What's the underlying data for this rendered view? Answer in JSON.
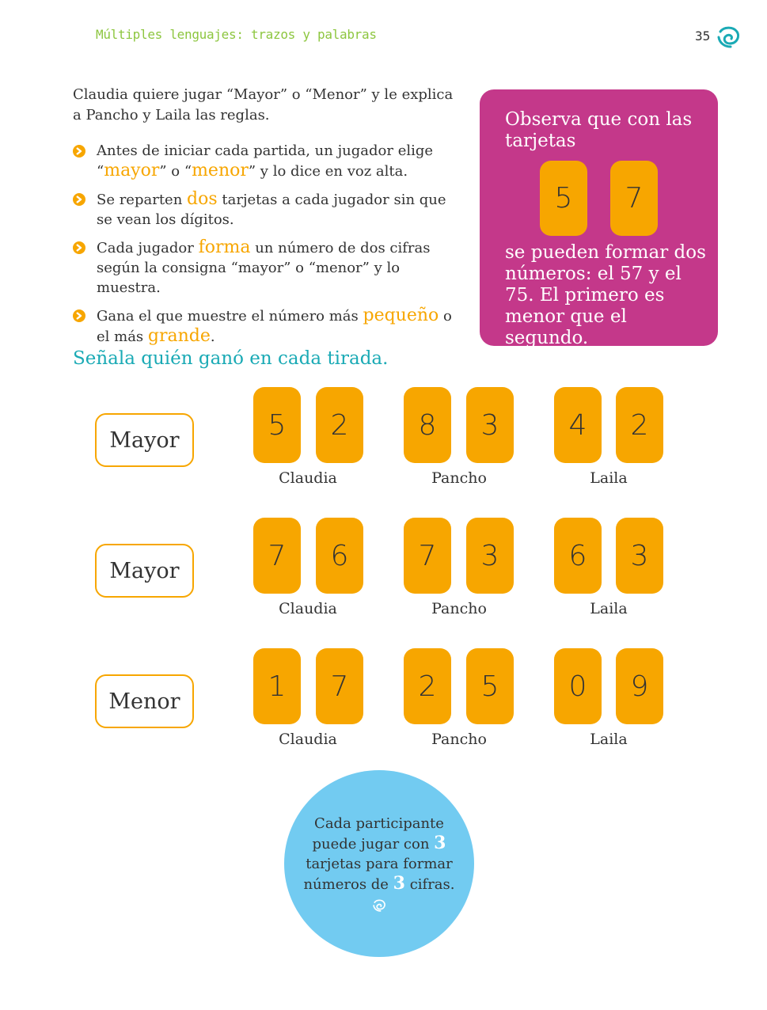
{
  "header": {
    "title": "Múltiples lenguajes: trazos y palabras",
    "page_number": "35"
  },
  "intro": "Claudia quiere jugar “Mayor” o “Menor” y le explica a Pancho y Laila las reglas.",
  "rules": [
    {
      "before": "Antes de iniciar cada partida, un jugador elige “",
      "hl1": "mayor",
      "middle": "” o “",
      "hl2": "menor",
      "after": "” y lo dice en voz alta."
    },
    {
      "before": "Se reparten ",
      "hl1": "dos",
      "after": " tarjetas a cada jugador sin que se vean los dígitos."
    },
    {
      "before": "Cada jugador ",
      "hl1": "forma",
      "after": " un número de dos cifras según la consigna “mayor” o “menor” y lo muestra."
    },
    {
      "before": "Gana el que muestre el número más ",
      "hl1": "pequeño",
      "middle": " o el más ",
      "hl2": "grande",
      "after": "."
    }
  ],
  "callout": {
    "top_text": "Observa que con las tarjetas",
    "cards": [
      "5",
      "7"
    ],
    "bottom_text": "se pueden formar dos números: el 57 y el 75. El primero es menor que el segundo.",
    "color": "#c4388a"
  },
  "instruction": "Señala quién ganó en cada tirada.",
  "rounds": [
    {
      "rule": "Mayor",
      "players": [
        {
          "name": "Claudia",
          "cards": [
            "5",
            "2"
          ]
        },
        {
          "name": "Pancho",
          "cards": [
            "8",
            "3"
          ]
        },
        {
          "name": "Laila",
          "cards": [
            "4",
            "2"
          ]
        }
      ]
    },
    {
      "rule": "Mayor",
      "players": [
        {
          "name": "Claudia",
          "cards": [
            "7",
            "6"
          ]
        },
        {
          "name": "Pancho",
          "cards": [
            "7",
            "3"
          ]
        },
        {
          "name": "Laila",
          "cards": [
            "6",
            "3"
          ]
        }
      ]
    },
    {
      "rule": "Menor",
      "players": [
        {
          "name": "Claudia",
          "cards": [
            "1",
            "7"
          ]
        },
        {
          "name": "Pancho",
          "cards": [
            "2",
            "5"
          ]
        },
        {
          "name": "Laila",
          "cards": [
            "0",
            "9"
          ]
        }
      ]
    }
  ],
  "bubble": {
    "line1": "Cada participante puede jugar con ",
    "num1": "3",
    "line2": " tarjetas para formar números de ",
    "num2": "3",
    "line3": " cifras."
  },
  "colors": {
    "header_green": "#8dc63f",
    "card_orange": "#f7a600",
    "instruction_teal": "#1aaab5",
    "bubble_blue": "#72cbf1"
  },
  "icons": [
    "swirl-logo-icon",
    "chevron-bullet-icon"
  ]
}
